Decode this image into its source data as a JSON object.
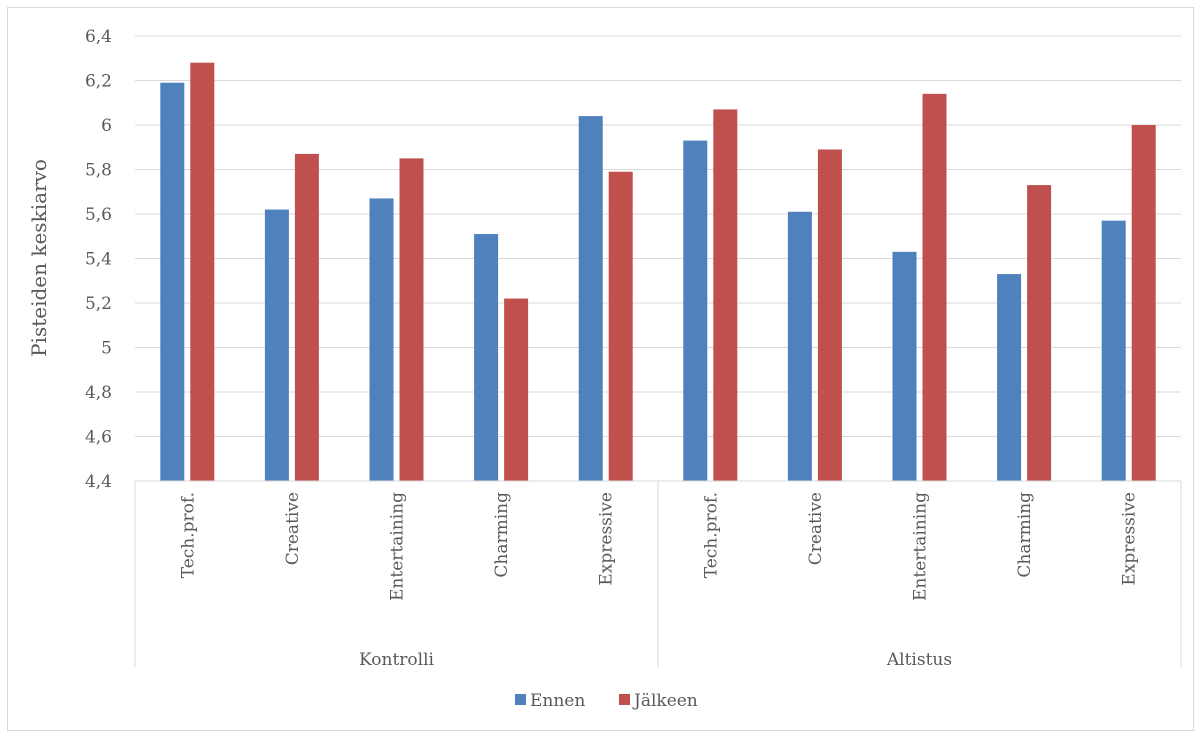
{
  "chart_data": {
    "type": "bar",
    "ylabel": "Pisteiden keskiarvo",
    "xlabel": "",
    "ylim": [
      4.4,
      6.4
    ],
    "yticks": [
      "4,4",
      "4,6",
      "4,8",
      "5",
      "5,2",
      "5,4",
      "5,6",
      "5,8",
      "6",
      "6,2",
      "6,4"
    ],
    "grid": "horizontal",
    "legend_position": "bottom",
    "groups": [
      {
        "name": "Kontrolli",
        "categories": [
          "Tech.prof.",
          "Creative",
          "Entertaining",
          "Charming",
          "Expressive"
        ]
      },
      {
        "name": "Altistus",
        "categories": [
          "Tech.prof.",
          "Creative",
          "Entertaining",
          "Charming",
          "Expressive"
        ]
      }
    ],
    "series": [
      {
        "name": "Ennen",
        "color": "#4f81bd",
        "values": [
          6.19,
          5.62,
          5.67,
          5.51,
          6.04,
          5.93,
          5.61,
          5.43,
          5.33,
          5.57
        ]
      },
      {
        "name": "Jälkeen",
        "color": "#c0504d",
        "values": [
          6.28,
          5.87,
          5.85,
          5.22,
          5.79,
          6.07,
          5.89,
          6.14,
          5.73,
          6.0
        ]
      }
    ]
  }
}
